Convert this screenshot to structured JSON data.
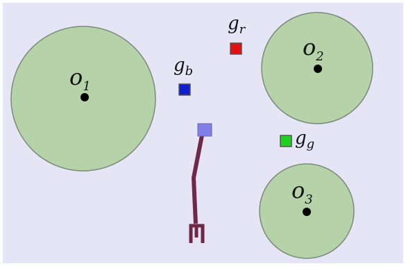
{
  "obstacles": [
    {
      "label": {
        "base": "o",
        "sub": "1"
      }
    },
    {
      "label": {
        "base": "o",
        "sub": "2"
      }
    },
    {
      "label": {
        "base": "o",
        "sub": "3"
      }
    }
  ],
  "goals": [
    {
      "label": {
        "base": "g",
        "sub": "r"
      }
    },
    {
      "label": {
        "base": "g",
        "sub": "b"
      }
    },
    {
      "label": {
        "base": "g",
        "sub": "g"
      }
    }
  ]
}
